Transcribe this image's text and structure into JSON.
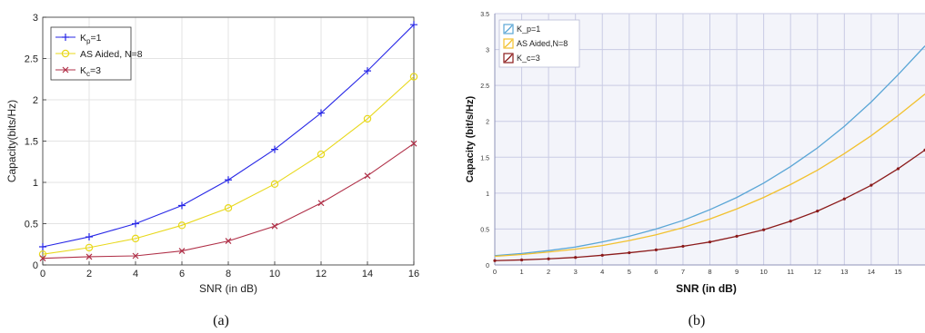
{
  "panels": {
    "a": {
      "caption": "(a)"
    },
    "b": {
      "caption": "(b)"
    }
  },
  "chart_data": [
    {
      "type": "line",
      "panel": "a",
      "title": "",
      "xlabel": "SNR (in dB)",
      "ylabel": "Capacity(bits/Hz)",
      "xlim": [
        0,
        16
      ],
      "ylim": [
        0,
        3
      ],
      "xticks": [
        0,
        2,
        4,
        6,
        8,
        10,
        12,
        14,
        16
      ],
      "yticks": [
        0,
        0.5,
        1,
        1.5,
        2,
        2.5,
        3
      ],
      "xtick_labels": [
        "0",
        "2",
        "4",
        "6",
        "8",
        "10",
        "12",
        "14",
        "16"
      ],
      "ytick_labels": [
        "0",
        "0.5",
        "1",
        "1.5",
        "2",
        "2.5",
        "3"
      ],
      "grid": true,
      "legend_position": "top-left",
      "x": [
        0,
        2,
        4,
        6,
        8,
        10,
        12,
        14,
        16
      ],
      "series": [
        {
          "name": "K_p=1",
          "name_main": "K",
          "name_sub": "p",
          "name_rest": "=1",
          "color": "#2727e6",
          "marker": "plus",
          "values": [
            0.22,
            0.34,
            0.5,
            0.72,
            1.03,
            1.4,
            1.84,
            2.35,
            2.91
          ]
        },
        {
          "name": "AS Aided, N=8",
          "name_main": "AS Aided, N=8",
          "name_sub": "",
          "name_rest": "",
          "color": "#e8d81a",
          "marker": "circle",
          "values": [
            0.13,
            0.21,
            0.32,
            0.48,
            0.69,
            0.98,
            1.34,
            1.77,
            2.28
          ]
        },
        {
          "name": "K_c=3",
          "name_main": "K",
          "name_sub": "c",
          "name_rest": "=3",
          "color": "#b03048",
          "marker": "x",
          "values": [
            0.08,
            0.1,
            0.11,
            0.17,
            0.29,
            0.47,
            0.75,
            1.08,
            1.47
          ]
        }
      ]
    },
    {
      "type": "line",
      "panel": "b",
      "title": "",
      "xlabel": "SNR (in dB)",
      "ylabel": "Capacity (bit/s/Hz)",
      "xlim": [
        0,
        16
      ],
      "ylim": [
        0,
        3.5
      ],
      "xticks": [
        0,
        1,
        2,
        3,
        4,
        5,
        6,
        7,
        8,
        9,
        10,
        11,
        12,
        13,
        14,
        15
      ],
      "yticks": [
        0,
        0.5,
        1,
        1.5,
        2,
        2.5,
        3,
        3.5
      ],
      "xtick_labels": [
        "0",
        "1",
        "2",
        "3",
        "4",
        "5",
        "6",
        "7",
        "8",
        "9",
        "10",
        "11",
        "12",
        "13",
        "14",
        "15"
      ],
      "ytick_labels": [
        "0",
        "0.5",
        "1",
        "1.5",
        "2",
        "2.5",
        "3",
        "3.5"
      ],
      "grid": true,
      "legend_position": "top-left",
      "background": "#f3f4fa",
      "x": [
        0,
        1,
        2,
        3,
        4,
        5,
        6,
        7,
        8,
        9,
        10,
        11,
        12,
        13,
        14,
        15,
        16
      ],
      "series": [
        {
          "name": "K_p=1",
          "color": "#5aa6d6",
          "values": [
            0.13,
            0.16,
            0.2,
            0.25,
            0.32,
            0.4,
            0.5,
            0.62,
            0.77,
            0.94,
            1.14,
            1.37,
            1.63,
            1.93,
            2.27,
            2.65,
            3.05
          ]
        },
        {
          "name": "AS Aided,N=8",
          "color": "#f2c12e",
          "values": [
            0.12,
            0.145,
            0.18,
            0.22,
            0.27,
            0.34,
            0.42,
            0.52,
            0.64,
            0.78,
            0.94,
            1.12,
            1.32,
            1.55,
            1.8,
            2.08,
            2.38
          ]
        },
        {
          "name": "K_c=3",
          "color": "#8b1a1a",
          "values": [
            0.06,
            0.07,
            0.085,
            0.105,
            0.135,
            0.17,
            0.21,
            0.26,
            0.32,
            0.4,
            0.49,
            0.61,
            0.75,
            0.92,
            1.11,
            1.34,
            1.6
          ]
        }
      ]
    }
  ]
}
